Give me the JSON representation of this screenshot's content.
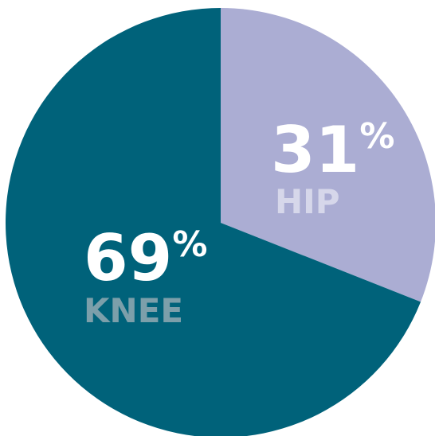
{
  "chart_data": {
    "type": "pie",
    "categories": [
      "HIP",
      "KNEE"
    ],
    "values": [
      31,
      69
    ],
    "value_labels": [
      "31%",
      "69%"
    ],
    "colors": [
      "#abadd3",
      "#00627a"
    ],
    "label_colors": [
      "#d6d7ea",
      "#7c9faa"
    ]
  }
}
